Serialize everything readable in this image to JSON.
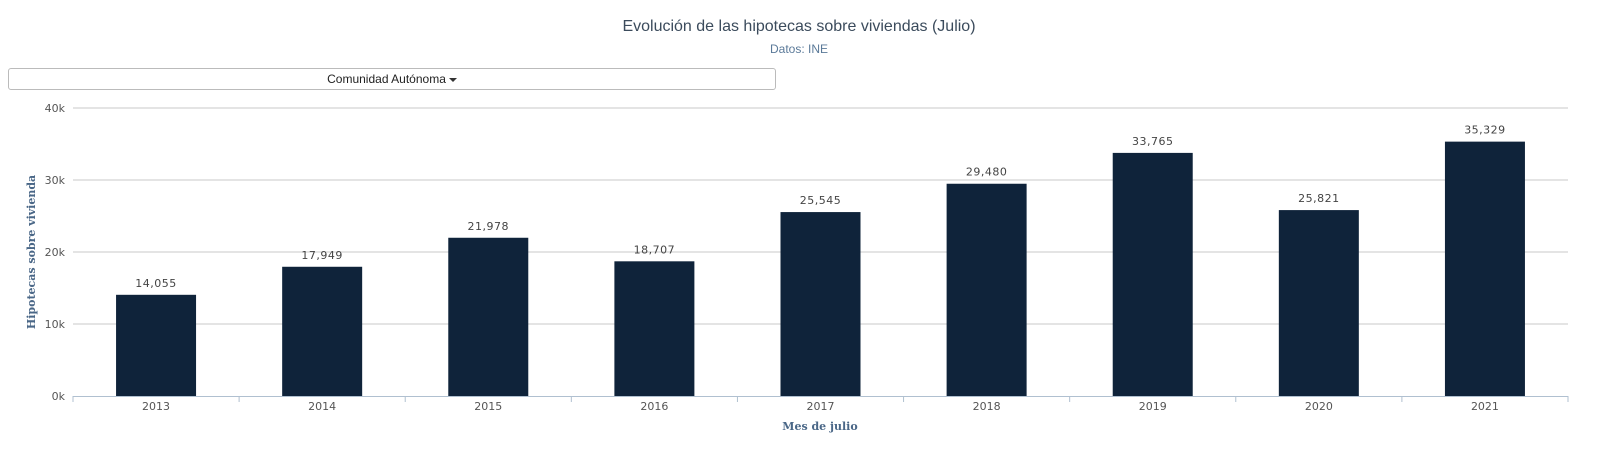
{
  "chart_data": {
    "type": "bar",
    "title": "Evolución de las hipotecas sobre viviendas (Julio)",
    "subtitle": "Datos: INE",
    "xlabel": "Mes de julio",
    "ylabel": "Hipotecas sobre vivienda",
    "categories": [
      "2013",
      "2014",
      "2015",
      "2016",
      "2017",
      "2018",
      "2019",
      "2020",
      "2021"
    ],
    "values": [
      14055,
      17949,
      21978,
      18707,
      25545,
      29480,
      33765,
      25821,
      35329
    ],
    "data_labels": [
      "14,055",
      "17,949",
      "21,978",
      "18,707",
      "25,545",
      "29,480",
      "33,765",
      "25,821",
      "35,329"
    ],
    "ylim": [
      0,
      40000
    ],
    "yticks": [
      0,
      10000,
      20000,
      30000,
      40000
    ],
    "ytick_labels": [
      "0k",
      "10k",
      "20k",
      "30k",
      "40k"
    ],
    "grid": true,
    "bar_color": "#0f233a"
  },
  "controls": {
    "dropdown_label": "Comunidad Autónoma"
  }
}
